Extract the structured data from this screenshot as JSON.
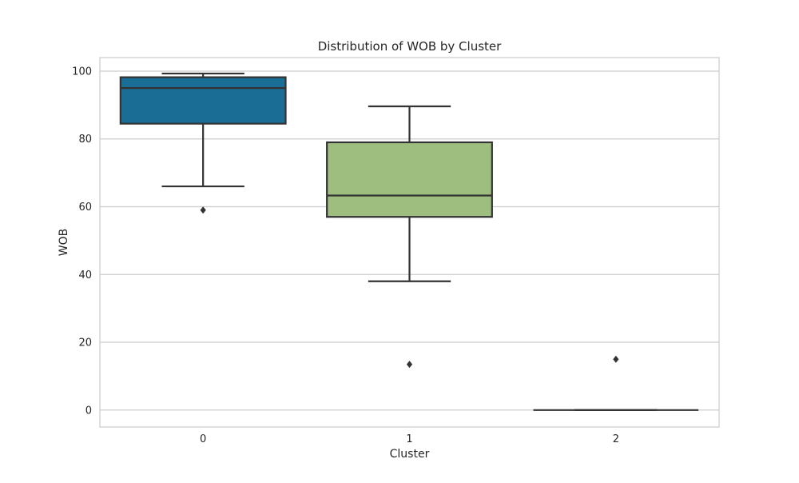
{
  "chart_data": {
    "type": "boxplot",
    "title": "Distribution of WOB by Cluster",
    "xlabel": "Cluster",
    "ylabel": "WOB",
    "categories": [
      "0",
      "1",
      "2"
    ],
    "ylim": [
      -5,
      104
    ],
    "yticks": [
      0,
      20,
      40,
      60,
      80,
      100
    ],
    "grid": "horizontal",
    "legend": "none",
    "boxes": [
      {
        "category": "0",
        "whisker_low": 66,
        "q1": 84.5,
        "median": 95,
        "q3": 98.2,
        "whisker_high": 99.3,
        "outliers": [
          59
        ],
        "color": "#1a6e96"
      },
      {
        "category": "1",
        "whisker_low": 38,
        "q1": 57,
        "median": 63.3,
        "q3": 79,
        "whisker_high": 89.6,
        "outliers": [
          13.5
        ],
        "color": "#9ebe80"
      },
      {
        "category": "2",
        "whisker_low": 0,
        "q1": 0,
        "median": 0,
        "q3": 0,
        "whisker_high": 0,
        "outliers": [
          15
        ],
        "color": "#c44e52"
      }
    ]
  },
  "colors": {
    "grid": "#cccccc",
    "frame": "#cccccc",
    "line": "#333333",
    "text": "#262626"
  }
}
